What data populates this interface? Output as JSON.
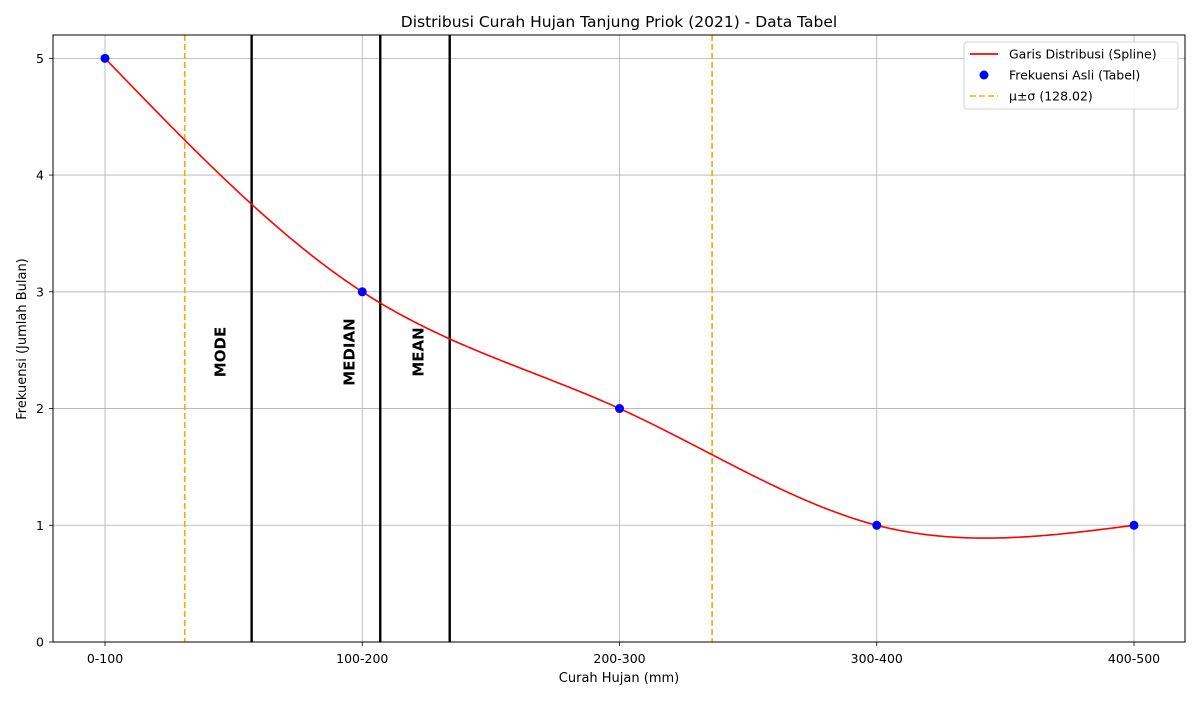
{
  "chart_data": {
    "type": "line",
    "title": "Distribusi Curah Hujan Tanjung Priok (2021) - Data Tabel",
    "xlabel": "Curah Hujan (mm)",
    "ylabel": "Frekuensi (Jumlah Bulan)",
    "categories": [
      "0-100",
      "100-200",
      "200-300",
      "300-400",
      "400-500"
    ],
    "ylim": [
      0,
      5.2
    ],
    "yticks": [
      0,
      1,
      2,
      3,
      4,
      5
    ],
    "grid": true,
    "legend_position": "top-right",
    "series": [
      {
        "name": "Garis Distribusi (Spline)",
        "kind": "spline",
        "color": "#ff0000",
        "x": [
          0,
          1,
          2,
          3,
          4
        ],
        "values": [
          5,
          3,
          2,
          1,
          1
        ]
      },
      {
        "name": "Frekuensi Asli (Tabel)",
        "kind": "points",
        "color": "#0000ff",
        "x": [
          0,
          1,
          2,
          3,
          4
        ],
        "values": [
          5,
          3,
          2,
          1,
          1
        ]
      }
    ],
    "band": {
      "name": "μ±σ (128.02)",
      "color": "#ffa500",
      "x_lines": [
        0.31,
        2.36
      ]
    },
    "stat_lines": [
      {
        "label": "MODE",
        "x": 0.57,
        "color": "#000000"
      },
      {
        "label": "MEDIAN",
        "x": 1.07,
        "color": "#000000"
      },
      {
        "label": "MEAN",
        "x": 1.34,
        "color": "#000000"
      }
    ]
  }
}
